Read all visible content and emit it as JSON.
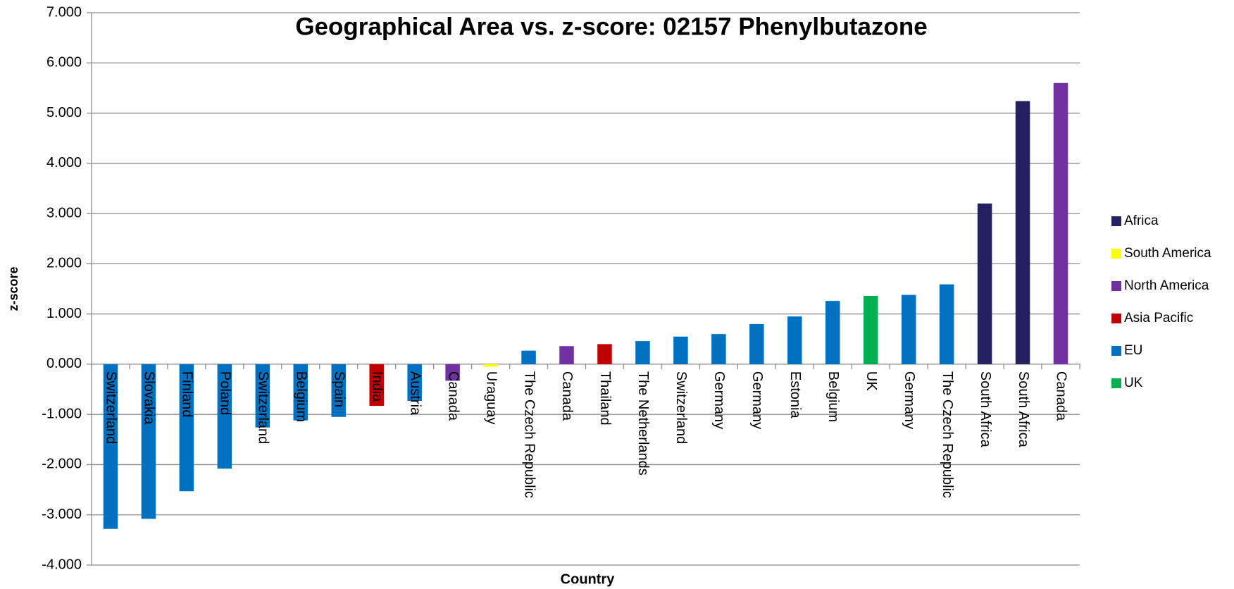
{
  "chart_data": {
    "type": "bar",
    "title": "Geographical Area vs. z-score: 02157 Phenylbutazone",
    "xlabel": "Country",
    "ylabel": "z-score",
    "categories": [
      "Switzerland",
      "Slovakia",
      "Finland",
      "Poland",
      "Switzerland",
      "Belgium",
      "Spain",
      "India",
      "Austria",
      "Canada",
      "Uraguay",
      "The Czech Republic",
      "Canada",
      "Thailand",
      "The Netherlands",
      "Switzerland",
      "Germany",
      "Germany",
      "Estonia",
      "Belgium",
      "UK",
      "Germany",
      "The Czech Republic",
      "South Africa",
      "South Africa",
      "Canada"
    ],
    "series": [
      {
        "name": "Africa",
        "color": "#23215f",
        "values": [
          null,
          null,
          null,
          null,
          null,
          null,
          null,
          null,
          null,
          null,
          null,
          null,
          null,
          null,
          null,
          null,
          null,
          null,
          null,
          null,
          null,
          null,
          null,
          3.2,
          5.24,
          null
        ]
      },
      {
        "name": "South America",
        "color": "#ffff00",
        "values": [
          null,
          null,
          null,
          null,
          null,
          null,
          null,
          null,
          null,
          null,
          -0.05,
          null,
          null,
          null,
          null,
          null,
          null,
          null,
          null,
          null,
          null,
          null,
          null,
          null,
          null,
          null
        ]
      },
      {
        "name": "North America",
        "color": "#7030a0",
        "values": [
          null,
          null,
          null,
          null,
          null,
          null,
          null,
          null,
          null,
          -0.33,
          null,
          null,
          0.36,
          null,
          null,
          null,
          null,
          null,
          null,
          null,
          null,
          null,
          null,
          null,
          null,
          5.6
        ]
      },
      {
        "name": "Asia Pacific",
        "color": "#c00000",
        "values": [
          null,
          null,
          null,
          null,
          null,
          null,
          null,
          -0.83,
          null,
          null,
          null,
          null,
          null,
          0.4,
          null,
          null,
          null,
          null,
          null,
          null,
          null,
          null,
          null,
          null,
          null,
          null
        ]
      },
      {
        "name": "EU",
        "color": "#0070c0",
        "values": [
          -3.28,
          -3.08,
          -2.53,
          -2.08,
          -1.26,
          -1.12,
          -1.05,
          null,
          -0.73,
          null,
          null,
          0.27,
          null,
          null,
          0.46,
          0.55,
          0.6,
          0.8,
          0.95,
          1.26,
          null,
          1.38,
          1.59,
          null,
          null,
          null
        ]
      },
      {
        "name": "UK",
        "color": "#00b050",
        "values": [
          null,
          null,
          null,
          null,
          null,
          null,
          null,
          null,
          null,
          null,
          null,
          null,
          null,
          null,
          null,
          null,
          null,
          null,
          null,
          null,
          1.36,
          null,
          null,
          null,
          null,
          null
        ]
      }
    ],
    "ylim": [
      -4,
      7
    ],
    "yticks": [
      {
        "value": -4,
        "label": "-4.000"
      },
      {
        "value": -3,
        "label": "-3.000"
      },
      {
        "value": -2,
        "label": "-2.000"
      },
      {
        "value": -1,
        "label": "-1.000"
      },
      {
        "value": 0,
        "label": "0.000"
      },
      {
        "value": 1,
        "label": "1.000"
      },
      {
        "value": 2,
        "label": "2.000"
      },
      {
        "value": 3,
        "label": "3.000"
      },
      {
        "value": 4,
        "label": "4.000"
      },
      {
        "value": 5,
        "label": "5.000"
      },
      {
        "value": 6,
        "label": "6.000"
      },
      {
        "value": 7,
        "label": "7.000"
      }
    ],
    "grid": true,
    "legend": "right"
  }
}
